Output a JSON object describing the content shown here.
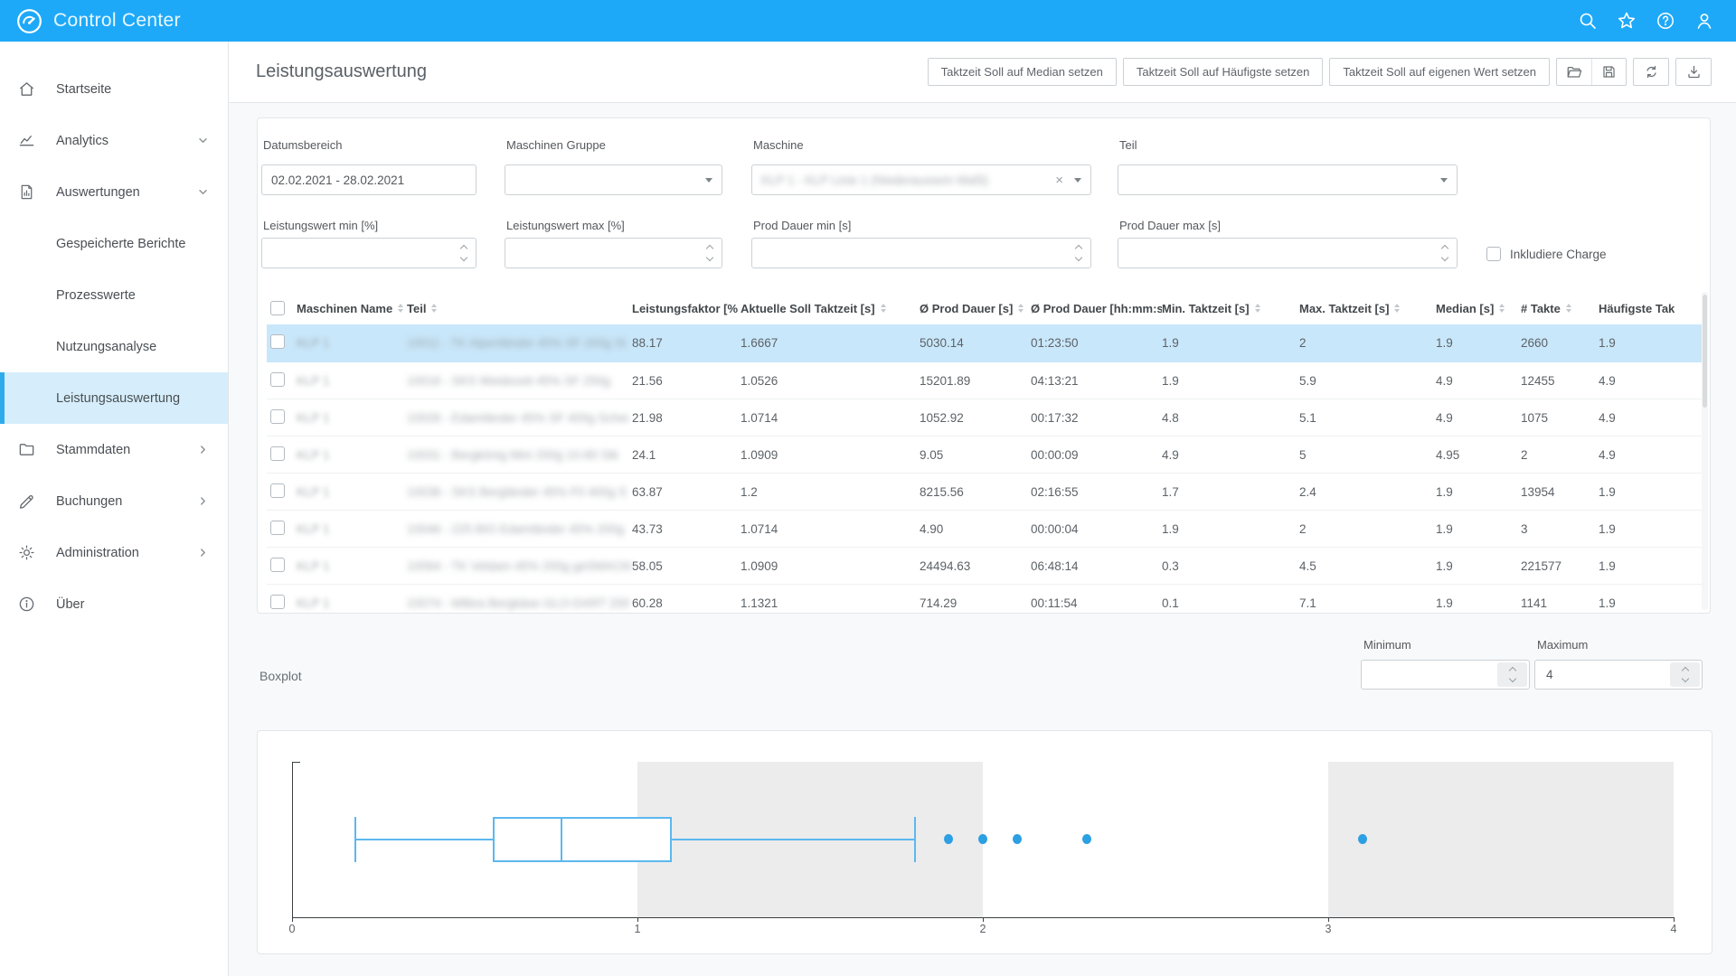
{
  "app": {
    "title": "Control Center"
  },
  "topbar": {
    "icons": [
      "search",
      "star",
      "help",
      "user"
    ]
  },
  "sidebar": {
    "items": [
      {
        "id": "startseite",
        "label": "Startseite",
        "icon": "home"
      },
      {
        "id": "analytics",
        "label": "Analytics",
        "icon": "analytics",
        "chevron": "down"
      },
      {
        "id": "auswertungen",
        "label": "Auswertungen",
        "icon": "report",
        "chevron": "down",
        "expanded": true
      },
      {
        "id": "gespeicherte-berichte",
        "label": "Gespeicherte Berichte",
        "sub": true
      },
      {
        "id": "prozesswerte",
        "label": "Prozesswerte",
        "sub": true
      },
      {
        "id": "nutzungsanalyse",
        "label": "Nutzungsanalyse",
        "sub": true
      },
      {
        "id": "leistungsauswertung",
        "label": "Leistungsauswertung",
        "sub": true,
        "selected": true
      },
      {
        "id": "stammdaten",
        "label": "Stammdaten",
        "icon": "folder",
        "chevron": "right"
      },
      {
        "id": "buchungen",
        "label": "Buchungen",
        "icon": "pencil",
        "chevron": "right"
      },
      {
        "id": "administration",
        "label": "Administration",
        "icon": "gear",
        "chevron": "right"
      },
      {
        "id": "ueber",
        "label": "Über",
        "icon": "info"
      }
    ]
  },
  "page": {
    "title": "Leistungsauswertung",
    "actions": [
      "Taktzeit Soll auf Median setzen",
      "Taktzeit Soll auf Häufigste setzen",
      "Taktzeit Soll auf eigenen Wert setzen"
    ],
    "icon_buttons": [
      "folder-open",
      "save",
      "refresh",
      "download"
    ]
  },
  "filters": {
    "datumsbereich": {
      "label": "Datumsbereich",
      "value": "02.02.2021 - 28.02.2021"
    },
    "maschinen_gruppe": {
      "label": "Maschinen Gruppe",
      "value": ""
    },
    "maschine": {
      "label": "Maschine",
      "value_blurred": "KLP 1 - KLP Linie 1 (Niederaussem Maßl)"
    },
    "teil": {
      "label": "Teil",
      "value": ""
    },
    "leistungswert_min": {
      "label": "Leistungswert min [%]",
      "value": ""
    },
    "leistungswert_max": {
      "label": "Leistungswert max [%]",
      "value": ""
    },
    "prod_dauer_min": {
      "label": "Prod Dauer min [s]",
      "value": ""
    },
    "prod_dauer_max": {
      "label": "Prod Dauer max [s]",
      "value": ""
    },
    "inkludiere_charge": {
      "label": "Inkludiere Charge",
      "checked": false
    }
  },
  "table": {
    "columns": [
      {
        "label": "Maschinen Name",
        "sortable": true
      },
      {
        "label": "Teil",
        "sortable": true
      },
      {
        "label": "Leistungsfaktor [%",
        "sortable": false
      },
      {
        "label": "Aktuelle Soll Taktzeit [s]",
        "sortable": true
      },
      {
        "label": "Ø Prod Dauer [s]",
        "sortable": true
      },
      {
        "label": "Ø Prod Dauer [hh:mm:s",
        "sortable": false
      },
      {
        "label": "Min. Taktzeit [s]",
        "sortable": true
      },
      {
        "label": "Max. Taktzeit [s]",
        "sortable": true
      },
      {
        "label": "Median [s]",
        "sortable": true
      },
      {
        "label": "# Takte",
        "sortable": true
      },
      {
        "label": "Häufigste Tak",
        "sortable": false
      }
    ],
    "rows": [
      {
        "selected": true,
        "machine_blurred": "KLP 1",
        "teil_blurred": "10011 - TK Alpenländer 45% SF 200g St",
        "leistungsfaktor": "88.17",
        "soll_taktzeit": "1.6667",
        "prod_dauer_s": "5030.14",
        "prod_dauer_hms": "01:23:50",
        "min_taktzeit": "1.9",
        "max_taktzeit": "2",
        "median": "1.9",
        "takte": "2660",
        "haeufigste": "1.9"
      },
      {
        "selected": false,
        "machine_blurred": "KLP 1",
        "teil_blurred": "10016 - SKS Weidezeit 45% SF 250g",
        "leistungsfaktor": "21.56",
        "soll_taktzeit": "1.0526",
        "prod_dauer_s": "15201.89",
        "prod_dauer_hms": "04:13:21",
        "min_taktzeit": "1.9",
        "max_taktzeit": "5.9",
        "median": "4.9",
        "takte": "12455",
        "haeufigste": "4.9"
      },
      {
        "selected": false,
        "machine_blurred": "KLP 1",
        "teil_blurred": "10026 - Edamländer 45% SF 400g Schei",
        "leistungsfaktor": "21.98",
        "soll_taktzeit": "1.0714",
        "prod_dauer_s": "1052.92",
        "prod_dauer_hms": "00:17:32",
        "min_taktzeit": "4.8",
        "max_taktzeit": "5.1",
        "median": "4.9",
        "takte": "1075",
        "haeufigste": "4.9"
      },
      {
        "selected": false,
        "machine_blurred": "KLP 1",
        "teil_blurred": "10031 - Bergkönig Mini 200g 10-80 Stk",
        "leistungsfaktor": "24.1",
        "soll_taktzeit": "1.0909",
        "prod_dauer_s": "9.05",
        "prod_dauer_hms": "00:00:09",
        "min_taktzeit": "4.9",
        "max_taktzeit": "5",
        "median": "4.95",
        "takte": "2",
        "haeufigste": "4.9"
      },
      {
        "selected": false,
        "machine_blurred": "KLP 1",
        "teil_blurred": "10036 - SKS Bergländer 45% F0 400g S",
        "leistungsfaktor": "63.87",
        "soll_taktzeit": "1.2",
        "prod_dauer_s": "8215.56",
        "prod_dauer_hms": "02:16:55",
        "min_taktzeit": "1.7",
        "max_taktzeit": "2.4",
        "median": "1.9",
        "takte": "13954",
        "haeufigste": "1.9"
      },
      {
        "selected": false,
        "machine_blurred": "KLP 1",
        "teil_blurred": "10046 - 225 BIO Edamländer 45% 200g",
        "leistungsfaktor": "43.73",
        "soll_taktzeit": "1.0714",
        "prod_dauer_s": "4.90",
        "prod_dauer_hms": "00:00:04",
        "min_taktzeit": "1.9",
        "max_taktzeit": "2",
        "median": "1.9",
        "takte": "3",
        "haeufigste": "1.9"
      },
      {
        "selected": false,
        "machine_blurred": "KLP 1",
        "teil_blurred": "10064 - TK Veldam 45% 200g geSMACKt",
        "leistungsfaktor": "58.05",
        "soll_taktzeit": "1.0909",
        "prod_dauer_s": "24494.63",
        "prod_dauer_hms": "06:48:14",
        "min_taktzeit": "0.3",
        "max_taktzeit": "4.5",
        "median": "1.9",
        "takte": "221577",
        "haeufigste": "1.9"
      },
      {
        "selected": false,
        "machine_blurred": "KLP 1",
        "teil_blurred": "10074 - Milbra Bergkäse GLO-DART 200",
        "leistungsfaktor": "60.28",
        "soll_taktzeit": "1.1321",
        "prod_dauer_s": "714.29",
        "prod_dauer_hms": "00:11:54",
        "min_taktzeit": "0.1",
        "max_taktzeit": "7.1",
        "median": "1.9",
        "takte": "1141",
        "haeufigste": "1.9"
      }
    ]
  },
  "boxplot_section": {
    "label": "Boxplot",
    "minimum_label": "Minimum",
    "minimum_value": "",
    "maximum_label": "Maximum",
    "maximum_value": "4"
  },
  "chart_data": {
    "type": "boxplot",
    "orientation": "horizontal",
    "title": "Boxplot",
    "xlim": [
      0,
      4
    ],
    "x_ticks": [
      "0",
      "1",
      "2",
      "3",
      "4"
    ],
    "box": {
      "whisker_min": 0.18,
      "q1": 0.58,
      "median": 0.78,
      "q3": 1.1,
      "whisker_max": 1.8
    },
    "outliers": [
      1.9,
      2.0,
      2.1,
      2.3,
      3.1
    ],
    "shaded_bands": [
      [
        1,
        2
      ],
      [
        3,
        4
      ]
    ],
    "grid": false,
    "legend": false,
    "colors": {
      "box": "#5cb8ee",
      "outliers": "#2d9fe3",
      "bands": "#ececec"
    }
  }
}
